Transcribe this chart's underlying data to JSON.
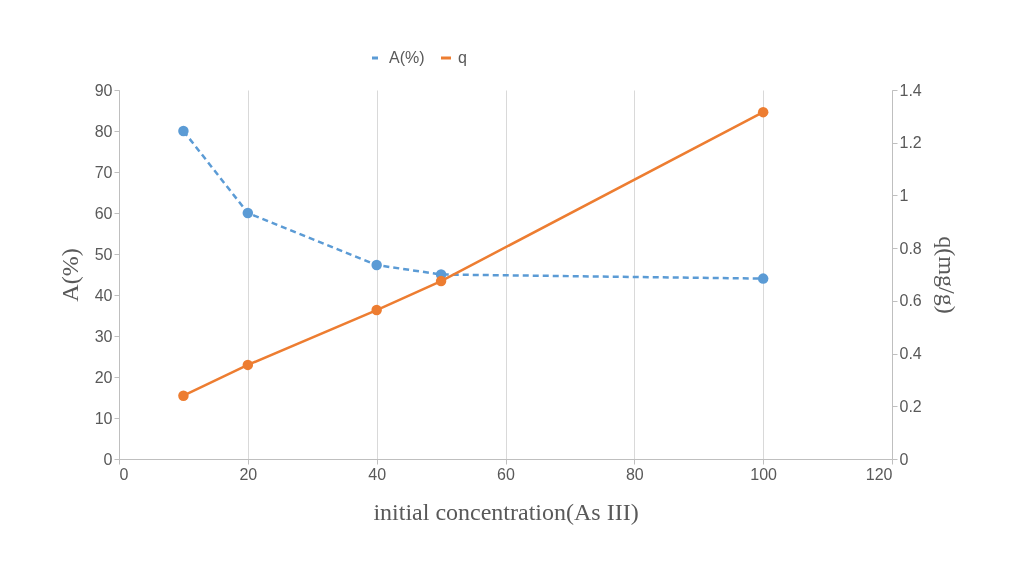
{
  "chart_data": {
    "type": "line",
    "xlabel": "initial concentration(As III)",
    "ylabel": "A(%)",
    "y2label": "q(mg/g)",
    "x": [
      10,
      20,
      40,
      50,
      100
    ],
    "series": [
      {
        "name": "A(%)",
        "color": "#5b9bd5",
        "values": [
          80,
          60,
          47.3,
          45,
          44
        ],
        "line_style": "dashed"
      },
      {
        "name": "q",
        "color": "#ed7d31",
        "values": [
          0.24,
          0.357,
          0.565,
          0.675,
          1.316
        ],
        "axis": "y2",
        "line_style": "solid"
      }
    ],
    "xlim": [
      0,
      120
    ],
    "xticks": [
      0,
      20,
      40,
      60,
      80,
      100,
      120
    ],
    "ylim": [
      0,
      90
    ],
    "yticks": [
      0,
      10,
      20,
      30,
      40,
      50,
      60,
      70,
      80,
      90
    ],
    "y2lim": [
      0,
      1.4
    ],
    "y2ticks": [
      0,
      0.2,
      0.4,
      0.6,
      0.8,
      1,
      1.2,
      1.4
    ],
    "grid": "x",
    "legend": "top",
    "marker": "circle"
  }
}
